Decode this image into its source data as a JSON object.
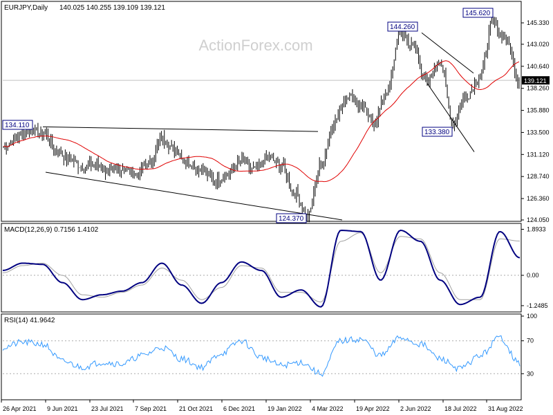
{
  "watermark": "ActionForex.com",
  "chart_data": [
    {
      "type": "candlestick",
      "title": "EURJPY,Daily",
      "ohlc_text": "140.025 140.255 139.109 139.121",
      "ylim": [
        124.05,
        147.2
      ],
      "y_ticks": [
        "145.330",
        "143.020",
        "140.640",
        "138.260",
        "135.880",
        "133.500",
        "131.120",
        "128.740",
        "126.360",
        "124.050"
      ],
      "current_price": "139.121",
      "moving_average_color": "#e00000",
      "bar_color": "#000000",
      "annotations": [
        "134.110",
        "124.370",
        "144.260",
        "133.380",
        "145.620"
      ],
      "anchors": [
        [
          "26 Apr 2021",
          132.0
        ],
        [
          "10 May 2021",
          133.0
        ],
        [
          "24 May 2021",
          133.8
        ],
        [
          "7 Jun 2021",
          133.4
        ],
        [
          "21 Jun 2021",
          131.6
        ],
        [
          "5 Jul 2021",
          130.6
        ],
        [
          "19 Jul 2021",
          129.8
        ],
        [
          "2 Aug 2021",
          130.0
        ],
        [
          "16 Aug 2021",
          129.2
        ],
        [
          "30 Aug 2021",
          129.6
        ],
        [
          "13 Sep 2021",
          129.0
        ],
        [
          "27 Sep 2021",
          130.2
        ],
        [
          "11 Oct 2021",
          132.8
        ],
        [
          "25 Oct 2021",
          131.6
        ],
        [
          "8 Nov 2021",
          130.2
        ],
        [
          "22 Nov 2021",
          129.4
        ],
        [
          "6 Dec 2021",
          128.4
        ],
        [
          "20 Dec 2021",
          129.0
        ],
        [
          "3 Jan 2022",
          130.4
        ],
        [
          "17 Jan 2022",
          129.4
        ],
        [
          "31 Jan 2022",
          130.8
        ],
        [
          "14 Feb 2022",
          130.0
        ],
        [
          "28 Feb 2022",
          127.0
        ],
        [
          "7 Mar 2022",
          124.4
        ],
        [
          "14 Mar 2022",
          130.0
        ],
        [
          "28 Mar 2022",
          134.6
        ],
        [
          "11 Apr 2022",
          137.6
        ],
        [
          "25 Apr 2022",
          136.4
        ],
        [
          "9 May 2022",
          134.6
        ],
        [
          "23 May 2022",
          137.8
        ],
        [
          "6 Jun 2022",
          144.2
        ],
        [
          "20 Jun 2022",
          142.8
        ],
        [
          "4 Jul 2022",
          138.8
        ],
        [
          "18 Jul 2022",
          141.2
        ],
        [
          "1 Aug 2022",
          134.6
        ],
        [
          "15 Aug 2022",
          137.4
        ],
        [
          "29 Aug 2022",
          139.4
        ],
        [
          "6 Sep 2022",
          145.2
        ],
        [
          "12 Sep 2022",
          143.6
        ],
        [
          "16 Sep 2022",
          139.1
        ]
      ]
    },
    {
      "type": "line",
      "title": "MACD(12,26,9) 0.7156 1.4102",
      "ylim": [
        -1.45,
        2.05
      ],
      "y_ticks": [
        "1.8933",
        "0.00",
        "-1.2485"
      ],
      "series": [
        {
          "role": "macd",
          "color": "#000080",
          "values": [
            0.2,
            0.5,
            0.45,
            -0.3,
            -1.0,
            -0.8,
            -0.65,
            -0.3,
            0.5,
            -0.4,
            -1.15,
            -0.3,
            0.55,
            0.2,
            -0.9,
            -0.6,
            -1.3,
            1.85,
            1.8,
            -0.2,
            1.85,
            1.4,
            -0.2,
            -1.2,
            -0.9,
            1.8,
            0.72
          ]
        },
        {
          "role": "signal",
          "color": "#a0a0a0",
          "values": [
            0.1,
            0.4,
            0.5,
            0.0,
            -0.8,
            -0.9,
            -0.7,
            -0.4,
            0.3,
            -0.2,
            -1.0,
            -0.5,
            0.4,
            0.3,
            -0.7,
            -0.7,
            -1.1,
            1.4,
            1.75,
            0.1,
            1.6,
            1.5,
            0.1,
            -1.0,
            -1.0,
            1.5,
            1.41
          ]
        }
      ]
    },
    {
      "type": "line",
      "title": "RSI(14) 41.9642",
      "ylim": [
        0,
        100
      ],
      "y_ticks": [
        "100",
        "70",
        "30",
        "0"
      ],
      "levels": [
        70,
        30
      ],
      "series": [
        {
          "role": "rsi",
          "color": "#3399ff",
          "values": [
            62,
            68,
            66,
            45,
            38,
            44,
            42,
            52,
            62,
            48,
            38,
            55,
            70,
            50,
            40,
            44,
            30,
            70,
            72,
            52,
            74,
            66,
            48,
            36,
            52,
            74,
            42
          ]
        }
      ]
    }
  ],
  "x_labels": [
    "26 Apr 2021",
    "9 Jun 2021",
    "23 Jul 2021",
    "7 Sep 2021",
    "21 Oct 2021",
    "6 Dec 2021",
    "19 Jan 2022",
    "4 Mar 2022",
    "19 Apr 2022",
    "2 Jun 2022",
    "18 Jul 2022",
    "31 Aug 2022"
  ]
}
